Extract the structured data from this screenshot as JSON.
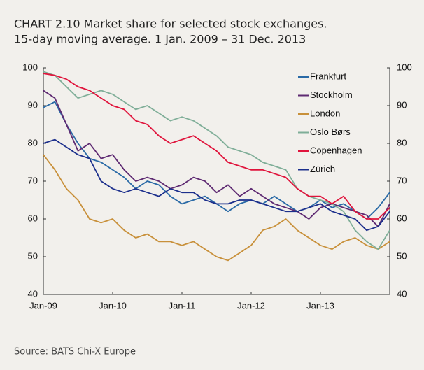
{
  "chart_data": {
    "type": "line",
    "title": "CHART 2.10 Market share for selected stock exchanges.",
    "subtitle": "15-day moving average. 1 Jan. 2009 – 31 Dec. 2013",
    "source": "Source: BATS Chi-X Europe",
    "x": [
      2009,
      2009.167,
      2009.333,
      2009.5,
      2009.667,
      2009.833,
      2010,
      2010.167,
      2010.333,
      2010.5,
      2010.667,
      2010.833,
      2011,
      2011.167,
      2011.333,
      2011.5,
      2011.667,
      2011.833,
      2012,
      2012.167,
      2012.333,
      2012.5,
      2012.667,
      2012.833,
      2013,
      2013.167,
      2013.333,
      2013.5,
      2013.667,
      2013.833,
      2014
    ],
    "xlim": [
      2009,
      2014
    ],
    "xticks": [
      {
        "value": 2009,
        "label": "Jan-09"
      },
      {
        "value": 2010,
        "label": "Jan-10"
      },
      {
        "value": 2011,
        "label": "Jan-11"
      },
      {
        "value": 2012,
        "label": "Jan-12"
      },
      {
        "value": 2013,
        "label": "Jan-13"
      }
    ],
    "ylim": [
      40,
      100
    ],
    "yticks": [
      40,
      50,
      60,
      70,
      80,
      90,
      100
    ],
    "y2lim": [
      40,
      100
    ],
    "y2ticks": [
      40,
      50,
      60,
      70,
      80,
      90,
      100
    ],
    "grid": false,
    "legend": "top-right",
    "series": [
      {
        "name": "Frankfurt",
        "color": "#2a6aa6",
        "values": [
          89.5,
          91,
          85,
          80,
          76,
          75,
          73,
          71,
          68,
          70,
          69,
          66,
          64,
          65,
          66,
          64,
          62,
          64,
          65,
          64,
          66,
          64,
          62,
          63,
          65,
          63,
          64,
          62,
          60,
          63,
          67
        ]
      },
      {
        "name": "Stockholm",
        "color": "#5e2a72",
        "values": [
          94,
          92,
          85,
          78,
          80,
          76,
          77,
          73,
          70,
          71,
          70,
          68,
          69,
          71,
          70,
          67,
          69,
          66,
          68,
          66,
          64,
          63,
          62,
          60,
          63,
          64,
          63,
          62,
          61,
          58,
          64
        ]
      },
      {
        "name": "London",
        "color": "#c8903a",
        "values": [
          77,
          73,
          68,
          65,
          60,
          59,
          60,
          57,
          55,
          56,
          54,
          54,
          53,
          54,
          52,
          50,
          49,
          51,
          53,
          57,
          58,
          60,
          57,
          55,
          53,
          52,
          54,
          55,
          53,
          52,
          54
        ]
      },
      {
        "name": "Oslo Børs",
        "color": "#7fae98",
        "values": [
          99,
          98,
          95,
          92,
          93,
          94,
          93,
          91,
          89,
          90,
          88,
          86,
          87,
          86,
          84,
          82,
          79,
          78,
          77,
          75,
          74,
          73,
          68,
          66,
          65,
          64,
          62,
          57,
          54,
          52,
          57
        ]
      },
      {
        "name": "Copenhagen",
        "color": "#e0143c",
        "values": [
          98.5,
          98,
          97,
          95,
          94,
          92,
          90,
          89,
          86,
          85,
          82,
          80,
          81,
          82,
          80,
          78,
          75,
          74,
          73,
          73,
          72,
          71,
          68,
          66,
          66,
          64,
          66,
          62,
          60,
          60,
          63
        ]
      },
      {
        "name": "Zürich",
        "color": "#1c2f8c",
        "values": [
          80,
          81,
          79,
          77,
          76,
          70,
          68,
          67,
          68,
          67,
          66,
          68,
          67,
          67,
          65,
          64,
          64,
          65,
          65,
          64,
          63,
          62,
          62,
          63,
          64,
          62,
          61,
          60,
          57,
          58,
          62
        ]
      }
    ]
  }
}
